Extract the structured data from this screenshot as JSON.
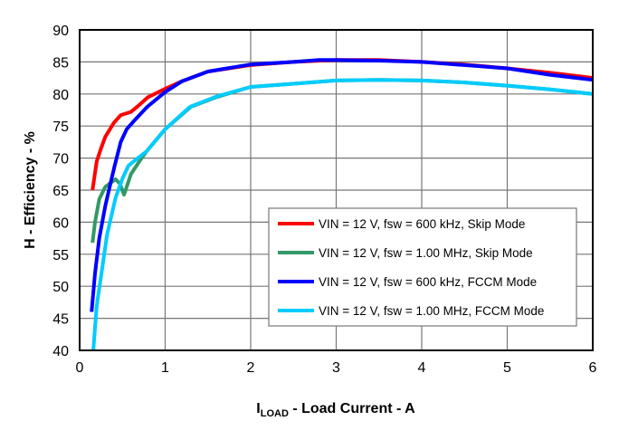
{
  "chart_data": {
    "type": "line",
    "title": "",
    "xlabel_main": "I",
    "xlabel_sub": "LOAD",
    "xlabel_rest": " - Load Current - A",
    "ylabel": "H - Efficiency - %",
    "xlim": [
      0,
      6
    ],
    "ylim": [
      40,
      90
    ],
    "xticks": [
      0,
      1,
      2,
      3,
      4,
      5,
      6
    ],
    "yticks": [
      40,
      45,
      50,
      55,
      60,
      65,
      70,
      75,
      80,
      85,
      90
    ],
    "grid": true,
    "legend_position": "lower-right",
    "series": [
      {
        "name": "VIN = 12 V, fsw = 600 kHz, Skip Mode",
        "color": "#ff0000",
        "x": [
          0.15,
          0.2,
          0.25,
          0.3,
          0.4,
          0.48,
          0.6,
          0.7,
          0.8,
          1.0,
          1.2,
          1.5,
          2,
          2.5,
          3,
          3.5,
          4,
          4.5,
          5,
          5.5,
          6
        ],
        "y": [
          65,
          69.5,
          71.5,
          73.3,
          75.5,
          76.7,
          77.2,
          78.3,
          79.5,
          80.8,
          82,
          83.5,
          84.5,
          85,
          85.3,
          85.3,
          85,
          84.6,
          84,
          83.3,
          82.5
        ]
      },
      {
        "name": "VIN = 12 V, fsw = 1.00 MHz, Skip Mode",
        "color": "#339966",
        "x": [
          0.15,
          0.18,
          0.23,
          0.3,
          0.42,
          0.47,
          0.52,
          0.6,
          0.7,
          0.78,
          1.0,
          1.3,
          1.6,
          2,
          2.5,
          3,
          3.5,
          4,
          4.5,
          5,
          5.5,
          6
        ],
        "y": [
          56.8,
          60,
          63.6,
          65.5,
          66.7,
          66,
          64.3,
          67.5,
          69.5,
          71,
          74.5,
          78,
          79.5,
          81.1,
          81.6,
          82.1,
          82.2,
          82.1,
          81.8,
          81.3,
          80.7,
          80
        ]
      },
      {
        "name": "VIN = 12 V, fsw = 600 kHz, FCCM Mode",
        "color": "#0000ff",
        "x": [
          0.14,
          0.18,
          0.23,
          0.3,
          0.36,
          0.41,
          0.48,
          0.55,
          0.65,
          0.79,
          1.0,
          1.2,
          1.5,
          2,
          2.5,
          2.8,
          3,
          3.5,
          4,
          4.5,
          5,
          5.5,
          6
        ],
        "y": [
          46,
          52,
          57.5,
          62.5,
          66,
          68.8,
          72.5,
          74.5,
          76,
          78,
          80.3,
          82,
          83.5,
          84.6,
          85,
          85.3,
          85.3,
          85.2,
          85,
          84.5,
          84,
          83,
          82.2
        ]
      },
      {
        "name": "VIN = 12 V, fsw = 1.00 MHz, FCCM Mode",
        "color": "#00ccff",
        "x": [
          0.16,
          0.2,
          0.25,
          0.32,
          0.42,
          0.5,
          0.57,
          0.68,
          0.78,
          1.0,
          1.29,
          1.6,
          2,
          2.5,
          3,
          3.5,
          4,
          4.5,
          5,
          5.5,
          6
        ],
        "y": [
          40,
          47,
          51.5,
          58,
          63.8,
          66.8,
          68.8,
          70,
          71,
          74.5,
          78,
          79.6,
          81.1,
          81.6,
          82.1,
          82.2,
          82.1,
          81.8,
          81.3,
          80.7,
          80
        ]
      }
    ]
  }
}
